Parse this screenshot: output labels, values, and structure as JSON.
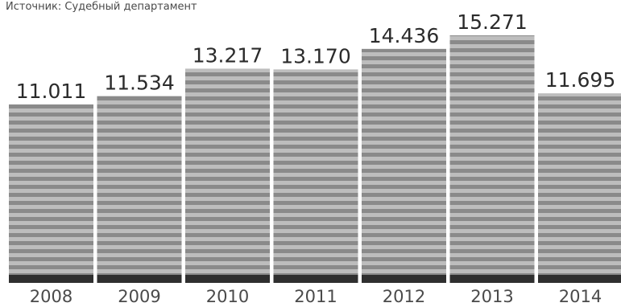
{
  "source": "Источник: Судебный департамент",
  "colors": {
    "bar_stripe_dark": "#8a8a8a",
    "bar_stripe_light": "#bdbdbd",
    "bar_base": "#2f2f2f",
    "value_text": "#2b2b2b",
    "year_text": "#4a4a4a"
  },
  "chart_data": {
    "type": "bar",
    "title": "",
    "xlabel": "",
    "ylabel": "",
    "categories": [
      "2008",
      "2009",
      "2010",
      "2011",
      "2012",
      "2013",
      "2014"
    ],
    "values": [
      11011,
      11534,
      13217,
      13170,
      14436,
      15271,
      11695
    ],
    "value_labels": [
      "11.011",
      "11.534",
      "13.217",
      "13.170",
      "14.436",
      "15.271",
      "11.695"
    ],
    "ylim": [
      0,
      15271
    ],
    "grid": false,
    "legend": "none"
  }
}
